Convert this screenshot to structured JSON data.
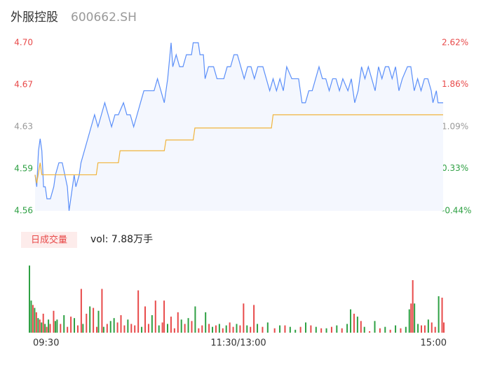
{
  "chart_data": {
    "type": "line",
    "title": "外服控股",
    "subtitle": "600662.SH",
    "volume_label": "日成交量",
    "volume_total": "vol: 7.88万手",
    "xlim": [
      0,
      240
    ],
    "xticks": [
      {
        "value": 0,
        "label": "09:30"
      },
      {
        "value": 120,
        "label": "11:30/13:00"
      },
      {
        "value": 240,
        "label": "15:00"
      }
    ],
    "ylim": [
      4.56,
      4.7
    ],
    "yticks": [
      {
        "value": 4.7,
        "label": "4.70"
      },
      {
        "value": 4.665,
        "label": "4.67"
      },
      {
        "value": 4.63,
        "label": "4.63"
      },
      {
        "value": 4.5949,
        "label": "4.59"
      },
      {
        "value": 4.56,
        "label": "4.56"
      }
    ],
    "y2lim": [
      -0.44,
      2.62
    ],
    "y2ticks": [
      {
        "value": 2.62,
        "label": "2.62%"
      },
      {
        "value": 1.86,
        "label": "1.86%"
      },
      {
        "value": 1.09,
        "label": "1.09%"
      },
      {
        "value": 0.33,
        "label": "0.33%"
      },
      {
        "value": -0.44,
        "label": "-0.44%"
      }
    ],
    "grid": false,
    "series": [
      {
        "color": "#5b8ff9",
        "x": [
          0,
          1,
          2,
          3,
          4,
          5,
          6,
          7,
          9,
          11,
          12,
          14,
          16,
          19,
          20,
          21,
          23,
          24,
          26,
          27,
          29,
          31,
          33,
          35,
          37,
          39,
          41,
          43,
          45,
          47,
          49,
          52,
          54,
          56,
          58,
          60,
          62,
          64,
          66,
          70,
          72,
          74,
          76,
          78,
          80,
          81,
          83,
          85,
          87,
          89,
          92,
          93,
          96,
          97,
          99,
          100,
          102,
          105,
          107,
          111,
          113,
          115,
          117,
          119,
          121,
          123,
          125,
          127,
          129,
          131,
          134,
          136,
          138,
          140,
          142,
          144,
          146,
          148,
          151,
          155,
          157,
          159,
          161,
          163,
          165,
          167,
          169,
          171,
          173,
          175,
          177,
          179,
          181,
          184,
          186,
          188,
          190,
          192,
          194,
          196,
          198,
          200,
          202,
          204,
          206,
          208,
          210,
          212,
          214,
          216,
          219,
          221,
          223,
          225,
          227,
          229,
          231,
          233,
          234,
          236,
          237,
          240
        ],
        "values": [
          4.59,
          4.58,
          4.61,
          4.62,
          4.61,
          4.58,
          4.58,
          4.57,
          4.57,
          4.58,
          4.59,
          4.6,
          4.6,
          4.58,
          4.56,
          4.57,
          4.59,
          4.58,
          4.59,
          4.6,
          4.61,
          4.62,
          4.63,
          4.64,
          4.63,
          4.64,
          4.65,
          4.64,
          4.63,
          4.64,
          4.64,
          4.65,
          4.64,
          4.64,
          4.63,
          4.64,
          4.65,
          4.66,
          4.66,
          4.66,
          4.67,
          4.66,
          4.65,
          4.67,
          4.7,
          4.68,
          4.69,
          4.68,
          4.68,
          4.69,
          4.69,
          4.7,
          4.7,
          4.69,
          4.69,
          4.67,
          4.68,
          4.68,
          4.67,
          4.67,
          4.68,
          4.68,
          4.69,
          4.69,
          4.68,
          4.67,
          4.68,
          4.68,
          4.67,
          4.68,
          4.68,
          4.67,
          4.66,
          4.67,
          4.66,
          4.67,
          4.66,
          4.68,
          4.67,
          4.67,
          4.65,
          4.65,
          4.66,
          4.66,
          4.67,
          4.68,
          4.67,
          4.67,
          4.66,
          4.67,
          4.67,
          4.66,
          4.67,
          4.66,
          4.67,
          4.65,
          4.66,
          4.68,
          4.67,
          4.68,
          4.67,
          4.66,
          4.68,
          4.67,
          4.68,
          4.68,
          4.67,
          4.68,
          4.66,
          4.67,
          4.68,
          4.68,
          4.66,
          4.67,
          4.66,
          4.67,
          4.67,
          4.66,
          4.65,
          4.66,
          4.65,
          4.65
        ]
      },
      {
        "color": "#f0b43c",
        "x": [
          0,
          1,
          3,
          4,
          36,
          37,
          49,
          50,
          76,
          77,
          93,
          94,
          139,
          140,
          240
        ],
        "values": [
          4.59,
          4.583,
          4.6,
          4.59,
          4.59,
          4.6,
          4.6,
          4.61,
          4.61,
          4.619,
          4.619,
          4.629,
          4.629,
          4.64,
          4.64
        ]
      }
    ],
    "vol_ylim": [
      0,
      2400
    ],
    "volume_up": {
      "color": "#e84a4a",
      "x": [
        2,
        4,
        6,
        8,
        10,
        12,
        14,
        18,
        22,
        24,
        28,
        30,
        33,
        37,
        39,
        42,
        45,
        51,
        53,
        55,
        59,
        61,
        63,
        67,
        69,
        73,
        77,
        78,
        82,
        84,
        86,
        90,
        94,
        98,
        100,
        104,
        108,
        112,
        116,
        118,
        122,
        124,
        128,
        130,
        135,
        142,
        148,
        157,
        163,
        169,
        175,
        181,
        188,
        192,
        197,
        203,
        209,
        215,
        221,
        222,
        227,
        229,
        233,
        235,
        239,
        240
      ],
      "values": [
        950,
        700,
        450,
        650,
        200,
        300,
        750,
        300,
        200,
        550,
        250,
        1500,
        650,
        850,
        200,
        1500,
        300,
        350,
        600,
        250,
        300,
        250,
        1450,
        900,
        300,
        1100,
        350,
        1100,
        550,
        150,
        700,
        300,
        400,
        150,
        250,
        300,
        250,
        150,
        350,
        200,
        250,
        1000,
        200,
        950,
        200,
        150,
        250,
        200,
        250,
        150,
        200,
        150,
        650,
        400,
        50,
        150,
        100,
        150,
        1000,
        1800,
        250,
        250,
        350,
        200,
        1200,
        350
      ]
    },
    "volume_down": {
      "color": "#2ea043",
      "x": [
        0,
        1,
        3,
        5,
        7,
        9,
        11,
        15,
        16,
        20,
        26,
        31,
        35,
        40,
        43,
        47,
        49,
        57,
        65,
        71,
        75,
        80,
        88,
        92,
        96,
        102,
        106,
        110,
        114,
        120,
        126,
        132,
        138,
        145,
        151,
        154,
        160,
        166,
        172,
        178,
        184,
        186,
        190,
        194,
        200,
        206,
        212,
        218,
        220,
        223,
        225,
        231,
        237
      ],
      "values": [
        2300,
        1100,
        850,
        500,
        350,
        300,
        450,
        400,
        450,
        600,
        500,
        300,
        900,
        750,
        200,
        400,
        500,
        450,
        200,
        600,
        250,
        300,
        450,
        500,
        900,
        700,
        200,
        300,
        250,
        300,
        250,
        300,
        350,
        250,
        200,
        100,
        350,
        200,
        150,
        250,
        300,
        800,
        550,
        200,
        400,
        200,
        250,
        200,
        800,
        1000,
        300,
        450,
        1250
      ]
    }
  }
}
